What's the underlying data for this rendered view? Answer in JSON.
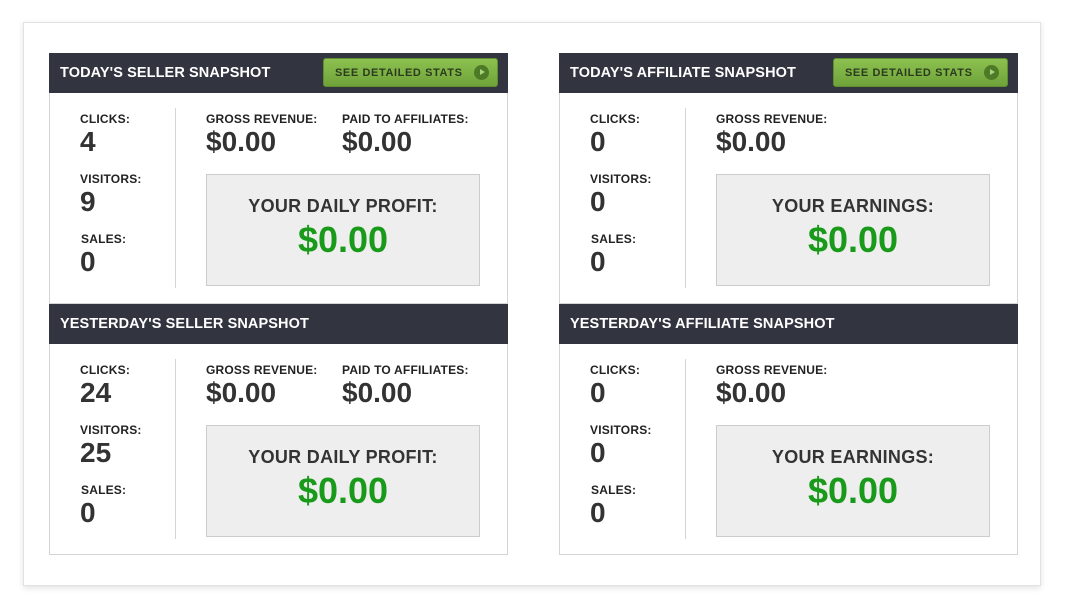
{
  "panels": [
    {
      "title": "TODAY'S SELLER SNAPSHOT",
      "button": "SEE DETAILED STATS",
      "clicks_label": "CLICKS:",
      "clicks": "4",
      "visitors_label": "VISITORS:",
      "visitors": "9",
      "sales_label": "SALES:",
      "sales": "0",
      "gross_label": "GROSS REVENUE:",
      "gross": "$0.00",
      "paid_label": "PAID TO AFFILIATES:",
      "paid": "$0.00",
      "box_label": "YOUR DAILY PROFIT:",
      "box_value": "$0.00"
    },
    {
      "title": "TODAY'S AFFILIATE SNAPSHOT",
      "button": "SEE DETAILED STATS",
      "clicks_label": "CLICKS:",
      "clicks": "0",
      "visitors_label": "VISITORS:",
      "visitors": "0",
      "sales_label": "SALES:",
      "sales": "0",
      "gross_label": "GROSS REVENUE:",
      "gross": "$0.00",
      "box_label": "YOUR EARNINGS:",
      "box_value": "$0.00"
    },
    {
      "title": "YESTERDAY'S SELLER SNAPSHOT",
      "clicks_label": "CLICKS:",
      "clicks": "24",
      "visitors_label": "VISITORS:",
      "visitors": "25",
      "sales_label": "SALES:",
      "sales": "0",
      "gross_label": "GROSS REVENUE:",
      "gross": "$0.00",
      "paid_label": "PAID TO AFFILIATES:",
      "paid": "$0.00",
      "box_label": "YOUR DAILY PROFIT:",
      "box_value": "$0.00"
    },
    {
      "title": "YESTERDAY'S AFFILIATE SNAPSHOT",
      "clicks_label": "CLICKS:",
      "clicks": "0",
      "visitors_label": "VISITORS:",
      "visitors": "0",
      "sales_label": "SALES:",
      "sales": "0",
      "gross_label": "GROSS REVENUE:",
      "gross": "$0.00",
      "box_label": "YOUR EARNINGS:",
      "box_value": "$0.00"
    }
  ],
  "colors": {
    "header": "#323440",
    "button": "#7ab244",
    "profit": "#1a9a1a"
  }
}
